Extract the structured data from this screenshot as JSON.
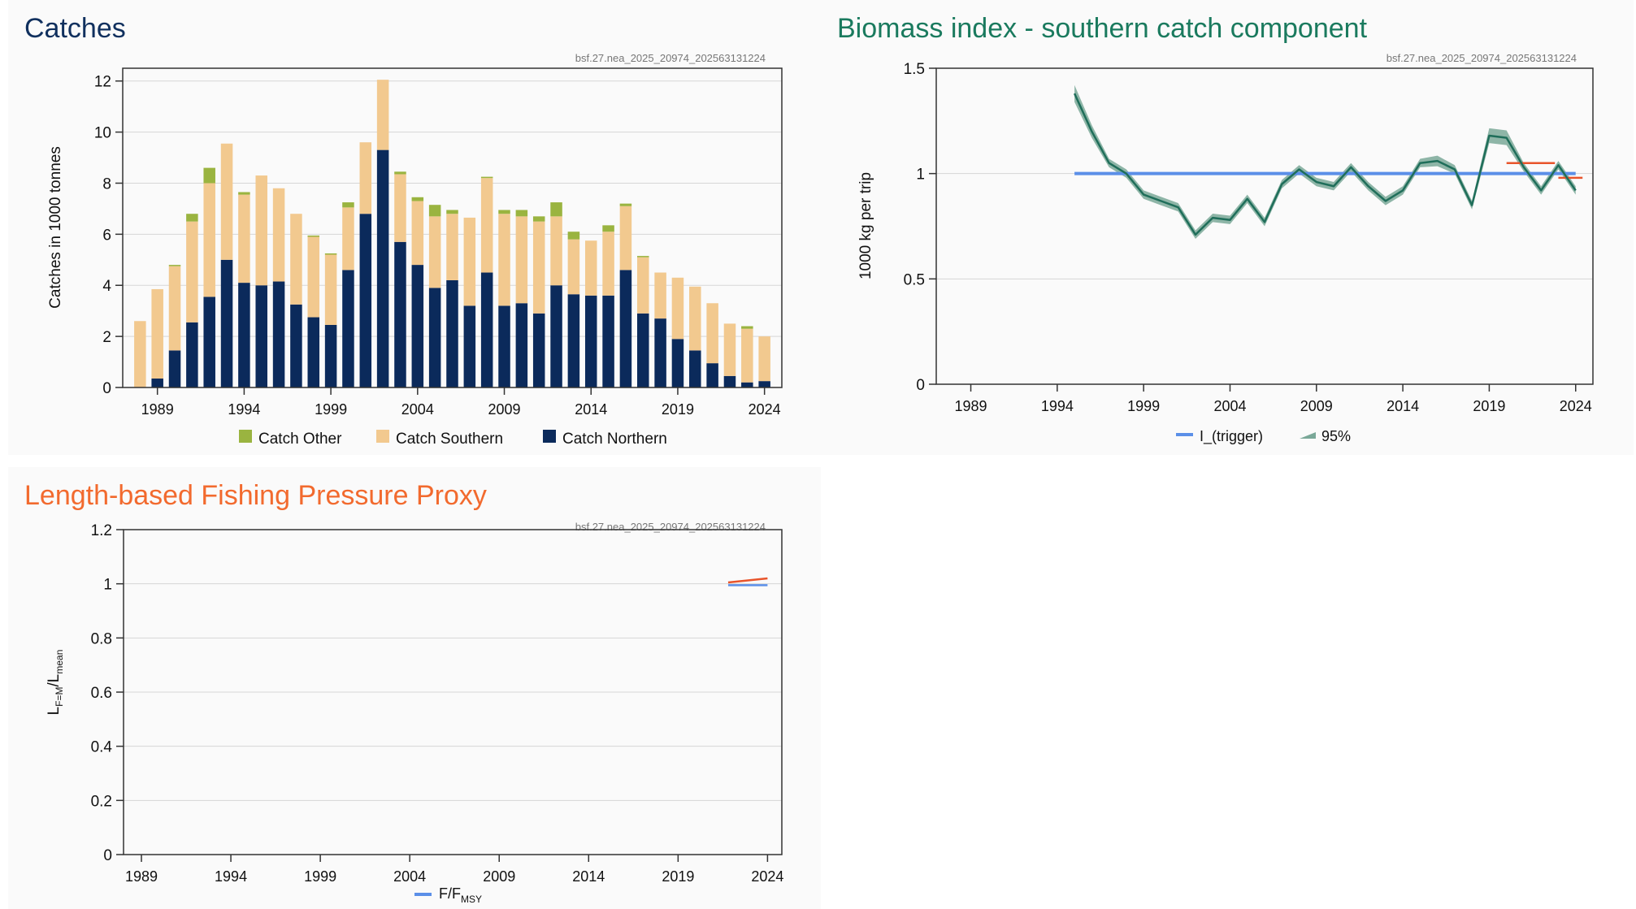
{
  "charts": {
    "catches": {
      "title": "Catches",
      "title_color": "#10305e",
      "watermark": "bsf.27.nea_2025_20974_202563131224",
      "ylabel": "Catches in 1000 tonnes",
      "y_ticks": [
        "0",
        "2",
        "4",
        "6",
        "8",
        "10",
        "12"
      ],
      "x_ticks": [
        "1989",
        "1994",
        "1999",
        "2004",
        "2009",
        "2014",
        "2019",
        "2024"
      ],
      "legend": [
        "Catch Other",
        "Catch Southern",
        "Catch Northern"
      ]
    },
    "biomass": {
      "title": "Biomass index - southern catch component",
      "title_color": "#1a7a5e",
      "watermark": "bsf.27.nea_2025_20974_202563131224",
      "ylabel": "1000 kg per trip",
      "y_ticks": [
        "0",
        "0.5",
        "1",
        "1.5"
      ],
      "x_ticks": [
        "1989",
        "1994",
        "1999",
        "2004",
        "2009",
        "2014",
        "2019",
        "2024"
      ],
      "legend": [
        "I_(trigger)",
        "95%"
      ]
    },
    "pressure": {
      "title": "Length-based Fishing Pressure Proxy",
      "title_color": "#f26a2e",
      "watermark": "bsf.27.nea_2025_20974_202563131224",
      "ylabel_main": "L",
      "ylabel_sub1": "F=M",
      "ylabel_mid": "/L",
      "ylabel_sub2": "mean",
      "y_ticks": [
        "0",
        "0.2",
        "0.4",
        "0.6",
        "0.8",
        "1",
        "1.2"
      ],
      "x_ticks": [
        "1989",
        "1994",
        "1999",
        "2004",
        "2009",
        "2014",
        "2019",
        "2024"
      ],
      "legend_main": "F/F",
      "legend_sub": "MSY"
    }
  },
  "chart_data": [
    {
      "type": "bar",
      "stacked": true,
      "title": "Catches",
      "ylabel": "Catches in 1000 tonnes",
      "ylim": [
        0,
        12.5
      ],
      "xlim": [
        1987,
        2025
      ],
      "x": [
        1988,
        1989,
        1990,
        1991,
        1992,
        1993,
        1994,
        1995,
        1996,
        1997,
        1998,
        1999,
        2000,
        2001,
        2002,
        2003,
        2004,
        2005,
        2006,
        2007,
        2008,
        2009,
        2010,
        2011,
        2012,
        2013,
        2014,
        2015,
        2016,
        2017,
        2018,
        2019,
        2020,
        2021,
        2022,
        2023,
        2024
      ],
      "series": [
        {
          "name": "Catch Northern",
          "color": "#0b2a5b",
          "values": [
            0,
            0.35,
            1.45,
            2.55,
            3.55,
            5.0,
            4.1,
            4.0,
            4.15,
            3.25,
            2.75,
            2.45,
            4.6,
            6.8,
            9.3,
            5.7,
            4.8,
            3.9,
            4.2,
            3.2,
            4.5,
            3.2,
            3.3,
            2.9,
            4.0,
            3.65,
            3.6,
            3.6,
            4.6,
            2.9,
            2.7,
            1.9,
            1.45,
            0.95,
            0.45,
            0.2,
            0.25
          ]
        },
        {
          "name": "Catch Southern",
          "color": "#f2c98f",
          "values": [
            2.6,
            3.5,
            3.3,
            3.95,
            4.45,
            4.55,
            3.45,
            4.3,
            3.65,
            3.55,
            3.15,
            2.75,
            2.45,
            2.8,
            2.75,
            2.65,
            2.5,
            2.8,
            2.6,
            3.45,
            3.7,
            3.6,
            3.4,
            3.6,
            2.7,
            2.15,
            2.15,
            2.5,
            2.5,
            2.2,
            1.8,
            2.4,
            2.5,
            2.35,
            2.05,
            2.1,
            1.75
          ]
        },
        {
          "name": "Catch Other",
          "color": "#9ab440",
          "values": [
            0,
            0,
            0.05,
            0.3,
            0.6,
            0,
            0.1,
            0,
            0,
            0,
            0.05,
            0.05,
            0.2,
            0,
            0,
            0.1,
            0.15,
            0.45,
            0.15,
            0,
            0.05,
            0.15,
            0.25,
            0.2,
            0.55,
            0.3,
            0,
            0.25,
            0.1,
            0.05,
            0,
            0,
            0,
            0,
            0,
            0.1,
            0
          ]
        }
      ]
    },
    {
      "type": "line",
      "title": "Biomass index - southern catch component",
      "ylabel": "1000 kg per trip",
      "ylim": [
        0,
        1.5
      ],
      "xlim": [
        1987,
        2025
      ],
      "x": [
        1995,
        1996,
        1997,
        1998,
        1999,
        2000,
        2001,
        2002,
        2003,
        2004,
        2005,
        2006,
        2007,
        2008,
        2009,
        2010,
        2011,
        2012,
        2013,
        2014,
        2015,
        2016,
        2017,
        2018,
        2019,
        2020,
        2021,
        2022,
        2023,
        2024
      ],
      "series": [
        {
          "name": "index",
          "color": "#1f6e5a",
          "values": [
            1.38,
            1.2,
            1.05,
            1.0,
            0.9,
            0.87,
            0.84,
            0.71,
            0.79,
            0.78,
            0.88,
            0.77,
            0.95,
            1.02,
            0.96,
            0.94,
            1.03,
            0.94,
            0.87,
            0.92,
            1.05,
            1.06,
            1.02,
            0.85,
            1.18,
            1.17,
            1.03,
            0.92,
            1.04,
            0.92
          ]
        },
        {
          "name": "I_(trigger)",
          "color": "#5b8fe8",
          "x": [
            1995,
            2024
          ],
          "values": [
            1.0,
            1.0
          ]
        },
        {
          "name": "ref-2020-2022",
          "color": "#e8542b",
          "x": [
            2020,
            2022.8
          ],
          "values": [
            1.05,
            1.05
          ]
        },
        {
          "name": "ref-2023-2024",
          "color": "#e8542b",
          "x": [
            2023,
            2024.4
          ],
          "values": [
            0.98,
            0.98
          ]
        }
      ],
      "band": {
        "name": "95%",
        "color": "#7aa898",
        "half_width": [
          0.04,
          0.03,
          0.02,
          0.02,
          0.02,
          0.02,
          0.02,
          0.02,
          0.02,
          0.02,
          0.02,
          0.02,
          0.02,
          0.02,
          0.02,
          0.02,
          0.02,
          0.02,
          0.02,
          0.02,
          0.02,
          0.025,
          0.02,
          0.02,
          0.035,
          0.035,
          0.02,
          0.02,
          0.02,
          0.02
        ]
      }
    },
    {
      "type": "line",
      "title": "Length-based Fishing Pressure Proxy",
      "ylim": [
        0,
        1.2
      ],
      "xlim": [
        1988,
        2024.8
      ],
      "series": [
        {
          "name": "F/F_MSY",
          "color": "#5b8fe8",
          "x": [
            2021.8,
            2024
          ],
          "values": [
            0.995,
            0.995
          ]
        },
        {
          "name": "ref",
          "color": "#e8542b",
          "x": [
            2021.8,
            2024
          ],
          "values": [
            1.005,
            1.02
          ]
        }
      ]
    }
  ]
}
